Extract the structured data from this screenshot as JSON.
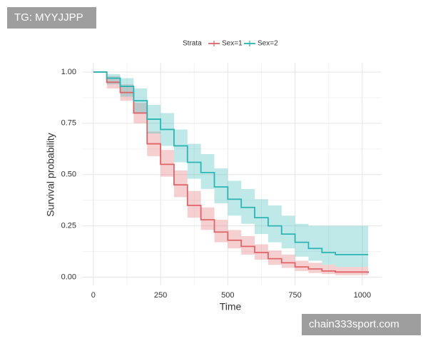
{
  "chart_data": {
    "type": "survival",
    "xlabel": "Time",
    "ylabel": "Survival probability",
    "legend_title": "Strata",
    "legend": "top",
    "xlim": [
      -42,
      1072
    ],
    "ylim": [
      -0.04,
      1.045
    ],
    "xticks": [
      0,
      250,
      500,
      750,
      1000
    ],
    "yticks": [
      {
        "value": 0,
        "label": "0.00"
      },
      {
        "value": 0.25,
        "label": "0.25"
      },
      {
        "value": 0.5,
        "label": "0.50"
      },
      {
        "value": 0.75,
        "label": "0.75"
      },
      {
        "value": 1,
        "label": "1.00"
      }
    ],
    "grid": true,
    "series": [
      {
        "name": "Sex=1",
        "color": "#e06467",
        "x": [
          0,
          50,
          100,
          150,
          200,
          250,
          300,
          350,
          400,
          450,
          500,
          550,
          600,
          650,
          700,
          750,
          800,
          850,
          900,
          1022
        ],
        "values": [
          1.0,
          0.95,
          0.9,
          0.8,
          0.65,
          0.55,
          0.45,
          0.35,
          0.28,
          0.22,
          0.18,
          0.15,
          0.12,
          0.09,
          0.07,
          0.05,
          0.04,
          0.03,
          0.025,
          0.02
        ],
        "lower": [
          1.0,
          0.92,
          0.86,
          0.75,
          0.59,
          0.49,
          0.39,
          0.29,
          0.23,
          0.17,
          0.14,
          0.11,
          0.085,
          0.06,
          0.045,
          0.03,
          0.02,
          0.015,
          0.01,
          0.008
        ],
        "upper": [
          1.0,
          0.98,
          0.94,
          0.85,
          0.71,
          0.62,
          0.52,
          0.42,
          0.34,
          0.28,
          0.23,
          0.2,
          0.16,
          0.13,
          0.11,
          0.08,
          0.07,
          0.06,
          0.05,
          0.045
        ]
      },
      {
        "name": "Sex=2",
        "color": "#2bb5b5",
        "x": [
          0,
          50,
          100,
          150,
          200,
          250,
          300,
          350,
          400,
          450,
          500,
          550,
          600,
          650,
          700,
          750,
          800,
          850,
          900,
          1022
        ],
        "values": [
          1.0,
          0.97,
          0.93,
          0.86,
          0.77,
          0.72,
          0.64,
          0.56,
          0.51,
          0.44,
          0.38,
          0.34,
          0.29,
          0.25,
          0.21,
          0.17,
          0.14,
          0.12,
          0.11,
          0.11
        ],
        "lower": [
          1.0,
          0.94,
          0.88,
          0.8,
          0.7,
          0.64,
          0.56,
          0.48,
          0.43,
          0.36,
          0.3,
          0.26,
          0.21,
          0.17,
          0.14,
          0.1,
          0.08,
          0.06,
          0.05,
          0.05
        ],
        "upper": [
          1.0,
          0.99,
          0.97,
          0.92,
          0.84,
          0.8,
          0.72,
          0.65,
          0.6,
          0.53,
          0.47,
          0.43,
          0.38,
          0.35,
          0.3,
          0.26,
          0.25,
          0.25,
          0.25,
          0.25
        ]
      }
    ],
    "annotations": [
      "TG: MYYJJPP",
      "chain333sport.com"
    ]
  }
}
